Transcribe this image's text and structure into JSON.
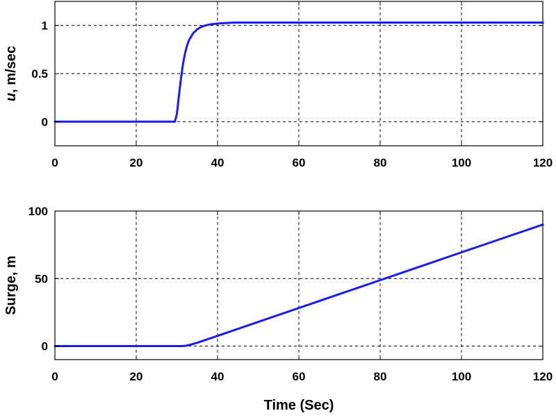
{
  "chart_data": [
    {
      "type": "line",
      "title": "",
      "xlabel": "",
      "ylabel": "u, m/sec",
      "ylabel_italic_prefix": "u",
      "ylabel_suffix": ", m/sec",
      "xlim": [
        0,
        120
      ],
      "ylim": [
        -0.25,
        1.25
      ],
      "xticks": [
        0,
        20,
        40,
        60,
        80,
        100,
        120
      ],
      "yticks": [
        0,
        0.5,
        1
      ],
      "ytick_labels": [
        "0",
        "0.5",
        "1"
      ],
      "grid": true,
      "line_color": "#1a1aff",
      "series": [
        {
          "x": [
            0,
            29.5,
            30,
            30.5,
            31,
            31.5,
            32,
            32.5,
            33,
            34,
            35,
            36,
            37,
            38,
            39,
            40,
            42,
            44,
            50,
            60,
            80,
            100,
            120
          ],
          "values": [
            0,
            0,
            0.08,
            0.27,
            0.45,
            0.6,
            0.71,
            0.79,
            0.85,
            0.92,
            0.96,
            0.985,
            1.0,
            1.01,
            1.015,
            1.02,
            1.025,
            1.03,
            1.03,
            1.03,
            1.03,
            1.03,
            1.03
          ]
        }
      ]
    },
    {
      "type": "line",
      "title": "",
      "xlabel": "Time (Sec)",
      "ylabel": "Surge, m",
      "xlim": [
        0,
        120
      ],
      "ylim": [
        -10,
        100
      ],
      "xticks": [
        0,
        20,
        40,
        60,
        80,
        100,
        120
      ],
      "yticks": [
        0,
        50,
        100
      ],
      "ytick_labels": [
        "0",
        "50",
        "100"
      ],
      "grid": true,
      "line_color": "#1a1aff",
      "series": [
        {
          "x": [
            0,
            31,
            32,
            33,
            34,
            35,
            36,
            38,
            40,
            50,
            60,
            70,
            80,
            90,
            100,
            110,
            120
          ],
          "values": [
            0,
            0,
            0.2,
            0.8,
            1.6,
            2.5,
            3.5,
            5.5,
            7.6,
            17.9,
            28.2,
            38.5,
            48.8,
            59.1,
            69.4,
            79.7,
            90
          ]
        }
      ]
    }
  ]
}
